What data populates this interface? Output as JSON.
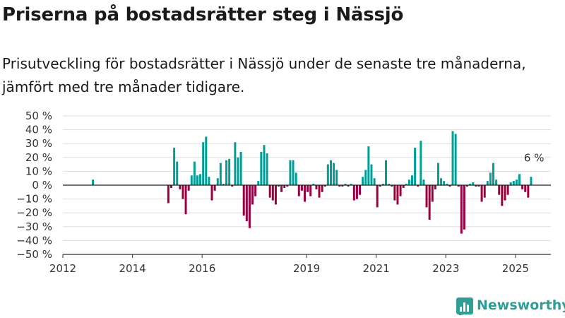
{
  "title": "Priserna på bostadsrätter steg i Nässjö",
  "subtitle": "Prisutveckling för bostadsrätter i Nässjö under de senaste tre månaderna, jämfört med tre månader tidigare.",
  "brand": "Newsworthy",
  "colors": {
    "positive": "#009e96",
    "negative": "#99003f",
    "brand": "#2f9e96",
    "grid": "#dddddd"
  },
  "chart_data": {
    "type": "bar",
    "ylim": [
      -50,
      50
    ],
    "y_ticks": [
      {
        "value": 50,
        "label": "50 %"
      },
      {
        "value": 40,
        "label": "40 %"
      },
      {
        "value": 30,
        "label": "30 %"
      },
      {
        "value": 20,
        "label": "20 %"
      },
      {
        "value": 10,
        "label": "10 %"
      },
      {
        "value": 0,
        "label": "0 %"
      },
      {
        "value": -10,
        "label": "−10 %"
      },
      {
        "value": -20,
        "label": "−20 %"
      },
      {
        "value": -30,
        "label": "−30 %"
      },
      {
        "value": -40,
        "label": "−40 %"
      },
      {
        "value": -50,
        "label": "−50 %"
      }
    ],
    "x_ticks": [
      {
        "date": "2012-01",
        "label": "2012"
      },
      {
        "date": "2014-01",
        "label": "2014"
      },
      {
        "date": "2016-01",
        "label": "2016"
      },
      {
        "date": "2019-01",
        "label": "2019"
      },
      {
        "date": "2021-01",
        "label": "2021"
      },
      {
        "date": "2023-01",
        "label": "2023"
      },
      {
        "date": "2025-01",
        "label": "2025"
      }
    ],
    "x_range": [
      "2012-01",
      "2025-12"
    ],
    "grid": true,
    "annotation": {
      "date": "2025-04",
      "value": 6,
      "label": "6 %"
    },
    "points": [
      {
        "x": "2012-11",
        "y": 4
      },
      {
        "x": "2015-01",
        "y": -13
      },
      {
        "x": "2015-02",
        "y": -2
      },
      {
        "x": "2015-03",
        "y": 27
      },
      {
        "x": "2015-04",
        "y": 17
      },
      {
        "x": "2015-05",
        "y": -3
      },
      {
        "x": "2015-06",
        "y": -10
      },
      {
        "x": "2015-07",
        "y": -21
      },
      {
        "x": "2015-08",
        "y": -4
      },
      {
        "x": "2015-09",
        "y": 7
      },
      {
        "x": "2015-10",
        "y": 17
      },
      {
        "x": "2015-11",
        "y": 7
      },
      {
        "x": "2015-12",
        "y": 8
      },
      {
        "x": "2016-01",
        "y": 31
      },
      {
        "x": "2016-02",
        "y": 35
      },
      {
        "x": "2016-03",
        "y": 6
      },
      {
        "x": "2016-04",
        "y": -11
      },
      {
        "x": "2016-05",
        "y": -4
      },
      {
        "x": "2016-06",
        "y": 5
      },
      {
        "x": "2016-07",
        "y": 16
      },
      {
        "x": "2016-08",
        "y": 1
      },
      {
        "x": "2016-09",
        "y": 18
      },
      {
        "x": "2016-10",
        "y": 19
      },
      {
        "x": "2016-11",
        "y": -1
      },
      {
        "x": "2016-12",
        "y": 31
      },
      {
        "x": "2017-01",
        "y": 20
      },
      {
        "x": "2017-02",
        "y": 24
      },
      {
        "x": "2017-03",
        "y": -22
      },
      {
        "x": "2017-04",
        "y": -26
      },
      {
        "x": "2017-05",
        "y": -31
      },
      {
        "x": "2017-06",
        "y": -14
      },
      {
        "x": "2017-07",
        "y": -8
      },
      {
        "x": "2017-08",
        "y": 3
      },
      {
        "x": "2017-09",
        "y": 24
      },
      {
        "x": "2017-10",
        "y": 29
      },
      {
        "x": "2017-11",
        "y": 23
      },
      {
        "x": "2017-12",
        "y": -9
      },
      {
        "x": "2018-01",
        "y": -11
      },
      {
        "x": "2018-02",
        "y": -14
      },
      {
        "x": "2018-03",
        "y": -1
      },
      {
        "x": "2018-04",
        "y": -5
      },
      {
        "x": "2018-05",
        "y": -2
      },
      {
        "x": "2018-06",
        "y": -1
      },
      {
        "x": "2018-07",
        "y": 18
      },
      {
        "x": "2018-08",
        "y": 18
      },
      {
        "x": "2018-09",
        "y": 9
      },
      {
        "x": "2018-10",
        "y": -8
      },
      {
        "x": "2018-11",
        "y": -4
      },
      {
        "x": "2018-12",
        "y": -12
      },
      {
        "x": "2019-01",
        "y": -5
      },
      {
        "x": "2019-02",
        "y": -8
      },
      {
        "x": "2019-03",
        "y": 1
      },
      {
        "x": "2019-04",
        "y": -3
      },
      {
        "x": "2019-05",
        "y": -9
      },
      {
        "x": "2019-06",
        "y": -5
      },
      {
        "x": "2019-07",
        "y": -1
      },
      {
        "x": "2019-08",
        "y": 15
      },
      {
        "x": "2019-09",
        "y": 18
      },
      {
        "x": "2019-10",
        "y": 16
      },
      {
        "x": "2019-11",
        "y": 11
      },
      {
        "x": "2019-12",
        "y": -1
      },
      {
        "x": "2020-01",
        "y": -1
      },
      {
        "x": "2020-02",
        "y": 1
      },
      {
        "x": "2020-03",
        "y": -1
      },
      {
        "x": "2020-04",
        "y": 1
      },
      {
        "x": "2020-05",
        "y": -11
      },
      {
        "x": "2020-06",
        "y": -10
      },
      {
        "x": "2020-07",
        "y": -7
      },
      {
        "x": "2020-08",
        "y": 6
      },
      {
        "x": "2020-09",
        "y": 11
      },
      {
        "x": "2020-10",
        "y": 28
      },
      {
        "x": "2020-11",
        "y": 15
      },
      {
        "x": "2020-12",
        "y": 5
      },
      {
        "x": "2021-01",
        "y": -16
      },
      {
        "x": "2021-02",
        "y": -1
      },
      {
        "x": "2021-03",
        "y": 1
      },
      {
        "x": "2021-04",
        "y": 18
      },
      {
        "x": "2021-05",
        "y": 1
      },
      {
        "x": "2021-06",
        "y": -1
      },
      {
        "x": "2021-07",
        "y": -11
      },
      {
        "x": "2021-08",
        "y": -14
      },
      {
        "x": "2021-09",
        "y": -8
      },
      {
        "x": "2021-10",
        "y": -2
      },
      {
        "x": "2021-11",
        "y": 1
      },
      {
        "x": "2021-12",
        "y": 4
      },
      {
        "x": "2022-01",
        "y": 7
      },
      {
        "x": "2022-02",
        "y": 27
      },
      {
        "x": "2022-03",
        "y": -1
      },
      {
        "x": "2022-04",
        "y": 32
      },
      {
        "x": "2022-05",
        "y": 4
      },
      {
        "x": "2022-06",
        "y": -16
      },
      {
        "x": "2022-07",
        "y": -25
      },
      {
        "x": "2022-08",
        "y": -12
      },
      {
        "x": "2022-09",
        "y": -3
      },
      {
        "x": "2022-10",
        "y": 16
      },
      {
        "x": "2022-11",
        "y": 5
      },
      {
        "x": "2022-12",
        "y": 3
      },
      {
        "x": "2023-01",
        "y": 1
      },
      {
        "x": "2023-02",
        "y": -1
      },
      {
        "x": "2023-03",
        "y": 39
      },
      {
        "x": "2023-04",
        "y": 37
      },
      {
        "x": "2023-05",
        "y": -1
      },
      {
        "x": "2023-06",
        "y": -35
      },
      {
        "x": "2023-07",
        "y": -32
      },
      {
        "x": "2023-08",
        "y": -1
      },
      {
        "x": "2023-09",
        "y": 1
      },
      {
        "x": "2023-10",
        "y": 2
      },
      {
        "x": "2023-11",
        "y": -1
      },
      {
        "x": "2023-12",
        "y": -1
      },
      {
        "x": "2024-01",
        "y": -12
      },
      {
        "x": "2024-02",
        "y": -9
      },
      {
        "x": "2024-03",
        "y": 3
      },
      {
        "x": "2024-04",
        "y": 9
      },
      {
        "x": "2024-05",
        "y": 16
      },
      {
        "x": "2024-06",
        "y": 4
      },
      {
        "x": "2024-07",
        "y": -7
      },
      {
        "x": "2024-08",
        "y": -15
      },
      {
        "x": "2024-09",
        "y": -11
      },
      {
        "x": "2024-10",
        "y": -7
      },
      {
        "x": "2024-11",
        "y": 2
      },
      {
        "x": "2024-12",
        "y": 3
      },
      {
        "x": "2025-01",
        "y": 4
      },
      {
        "x": "2025-02",
        "y": 8
      },
      {
        "x": "2025-03",
        "y": -3
      },
      {
        "x": "2025-04",
        "y": -5
      },
      {
        "x": "2025-05",
        "y": -9
      },
      {
        "x": "2025-06",
        "y": 6
      }
    ]
  }
}
